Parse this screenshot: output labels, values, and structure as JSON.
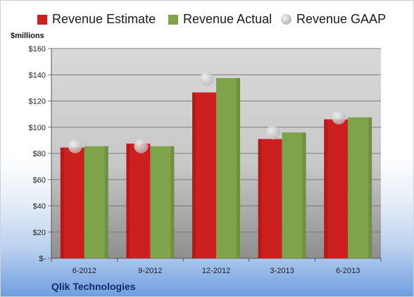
{
  "company": "Qlik Technologies",
  "y_unit_label": "$millions",
  "colors": {
    "estimate": "#cc1f1f",
    "actual": "#7fa34a",
    "gaap": "#b8b8b8"
  },
  "legend": [
    {
      "label": "Revenue Estimate",
      "key": "estimate"
    },
    {
      "label": "Revenue Actual",
      "key": "actual"
    },
    {
      "label": "Revenue GAAP",
      "key": "gaap"
    }
  ],
  "chart_data": {
    "type": "bar",
    "categories": [
      "6-2012",
      "9-2012",
      "12-2012",
      "3-2013",
      "6-2013"
    ],
    "series": [
      {
        "name": "Revenue Estimate",
        "key": "estimate",
        "values": [
          84.5,
          87.5,
          126.5,
          91,
          106
        ]
      },
      {
        "name": "Revenue Actual",
        "key": "actual",
        "values": [
          85.5,
          85.5,
          137.5,
          96,
          107.5
        ]
      },
      {
        "name": "Revenue GAAP",
        "key": "gaap",
        "mark": "point",
        "values": [
          85.5,
          85.5,
          137,
          96,
          107.5
        ]
      }
    ],
    "ylabel": "$millions",
    "ylim": [
      0,
      160
    ],
    "yticks": [
      "$-",
      "$20",
      "$40",
      "$60",
      "$80",
      "$100",
      "$120",
      "$140",
      "$160"
    ],
    "grid": true,
    "legend_position": "top"
  }
}
